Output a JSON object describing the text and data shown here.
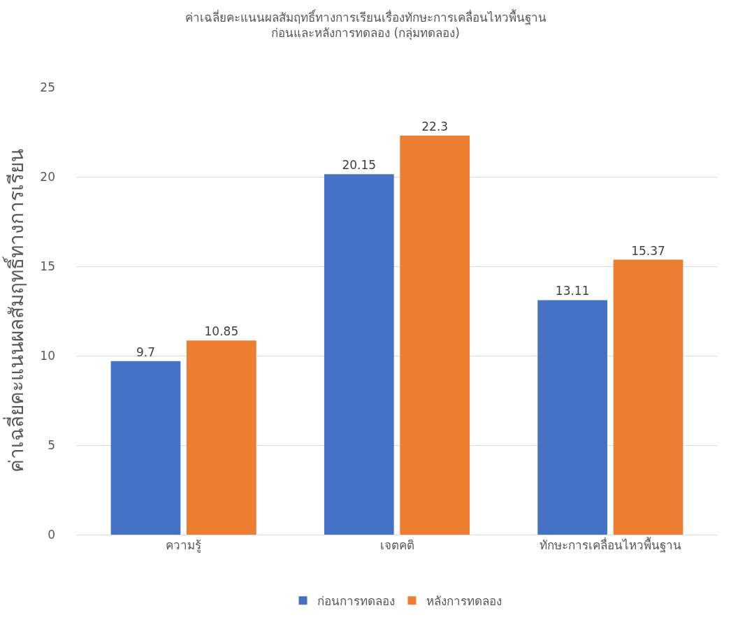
{
  "chart_data": {
    "type": "bar",
    "title": "ค่าเฉลี่ยคะแนนผลสัมฤทธิ์ทางการเรียนเรื่องทักษะการเคลื่อนไหวพื้นฐาน\nก่อนและหลังการทดลอง (กลุ่มทดลอง)",
    "ylabel": "ค่าเฉลี่ยคะแนนผลสัมฤทธิ์ทางการเรียน",
    "categories": [
      "ความรู้",
      "เจตคติ",
      "ทักษะการเคลื่อนไหวพื้นฐาน"
    ],
    "series": [
      {
        "name": "ก่อนการทดลอง",
        "color": "#4472c4",
        "values": [
          9.7,
          20.15,
          13.11
        ]
      },
      {
        "name": "หลังการทดลอง",
        "color": "#ed7d31",
        "values": [
          10.85,
          22.3,
          15.37
        ]
      }
    ],
    "ylim": [
      0,
      25
    ],
    "yticks": [
      0,
      5,
      10,
      15,
      20,
      25
    ],
    "grid": "y",
    "legend": "bottom",
    "data_labels": true
  }
}
